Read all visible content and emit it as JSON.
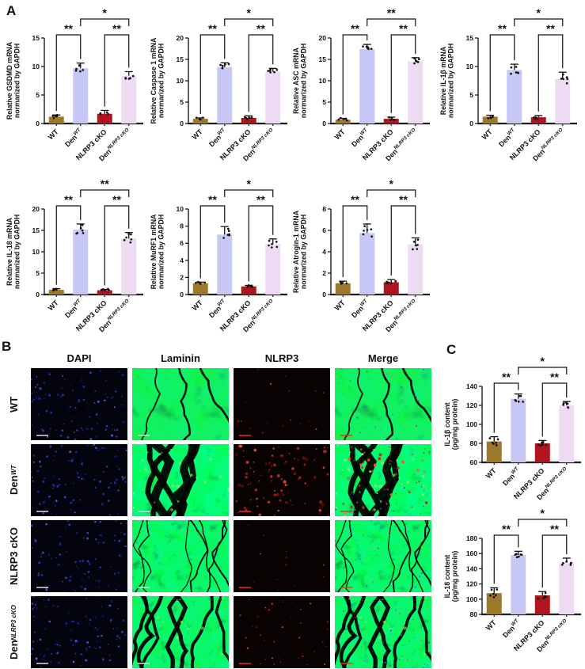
{
  "figure": {
    "panels": {
      "a": {
        "label": "A"
      },
      "b": {
        "label": "B",
        "col_headers": [
          "DAPI",
          "Laminin",
          "NLRP3",
          "Merge"
        ],
        "row_labels": [
          {
            "base": "WT",
            "sup": ""
          },
          {
            "base": "Den",
            "sup": "WT"
          },
          {
            "base": "NLRP3 cKO",
            "sup": ""
          },
          {
            "base": "Den",
            "sup": "NLRP3 cKO"
          }
        ]
      },
      "c": {
        "label": "C"
      }
    },
    "categories": [
      {
        "base": "WT",
        "sup": ""
      },
      {
        "base": "Den",
        "sup": "WT"
      },
      {
        "base": "NLRP3 cKO",
        "sup": ""
      },
      {
        "base": "Den",
        "sup": "NLRP3 cKO"
      }
    ],
    "colors": {
      "bar_wt": "#9d7a2b",
      "bar_den_wt": "#c7c8f3",
      "bar_nlrp3_cko": "#b0141f",
      "bar_den_nlrp3_cko": "#eedaf3",
      "axis": "#1c1c1c",
      "dapi_blue": "#3b4cf0",
      "nlrp3_red": "#e02315",
      "laminin_green": "#35d435"
    }
  },
  "chart_data": [
    {
      "id": "gsdmd",
      "panel": "A",
      "type": "bar",
      "ylabel": [
        "Relative GSDMD mRNA",
        "normarized by GAPDH"
      ],
      "ymin": 0,
      "ymax": 15,
      "yticks": [
        0,
        5,
        10,
        15
      ],
      "values": [
        1.2,
        9.7,
        1.7,
        8.4
      ],
      "err": [
        0.3,
        0.9,
        0.6,
        0.7
      ],
      "sig_pairs": [
        "**",
        "**"
      ],
      "sig_top": "*"
    },
    {
      "id": "caspase1",
      "panel": "A",
      "type": "bar",
      "ylabel": [
        "Relative Caspase 1 mRNA",
        "normarized by GAPDH"
      ],
      "ymin": 0,
      "ymax": 20,
      "yticks": [
        0,
        5,
        10,
        15,
        20
      ],
      "values": [
        1.1,
        13.2,
        1.3,
        12.1
      ],
      "err": [
        0.2,
        1.0,
        0.5,
        0.8
      ],
      "sig_pairs": [
        "**",
        "**"
      ],
      "sig_top": "*"
    },
    {
      "id": "asc",
      "panel": "A",
      "type": "bar",
      "ylabel": [
        "Relative ASC mRNA",
        "normarized by GAPDH"
      ],
      "ymin": 0,
      "ymax": 20,
      "yticks": [
        0,
        5,
        10,
        15,
        20
      ],
      "values": [
        0.9,
        17.4,
        1.1,
        14.5
      ],
      "err": [
        0.3,
        1.1,
        0.4,
        0.9
      ],
      "sig_pairs": [
        "**",
        "**"
      ],
      "sig_top": "**"
    },
    {
      "id": "il1b_mrna",
      "panel": "A",
      "type": "bar",
      "ylabel": [
        "Relative IL-1β mRNA",
        "normarized by GAPDH"
      ],
      "ymin": 0,
      "ymax": 15,
      "yticks": [
        0,
        5,
        10,
        15
      ],
      "values": [
        1.2,
        9.4,
        1.1,
        7.8
      ],
      "err": [
        0.25,
        1.0,
        0.3,
        1.2
      ],
      "sig_pairs": [
        "**",
        "**"
      ],
      "sig_top": "*"
    },
    {
      "id": "il18_mrna",
      "panel": "A",
      "type": "bar",
      "ylabel": [
        "Relative IL-18 mRNA",
        "normarized by GAPDH"
      ],
      "ymin": 0,
      "ymax": 20,
      "yticks": [
        0,
        5,
        10,
        15,
        20
      ],
      "values": [
        1.1,
        15.2,
        1.0,
        13.1
      ],
      "err": [
        0.25,
        1.3,
        0.2,
        1.4
      ],
      "sig_pairs": [
        "**",
        "**"
      ],
      "sig_top": "**"
    },
    {
      "id": "murf1",
      "panel": "A",
      "type": "bar",
      "ylabel": [
        "Relative MuRF1 mRNA",
        "normarized by GAPDH"
      ],
      "ymin": 0,
      "ymax": 10,
      "yticks": [
        0,
        2,
        4,
        6,
        8,
        10
      ],
      "values": [
        1.3,
        7.0,
        0.95,
        5.9
      ],
      "err": [
        0.15,
        0.95,
        0.12,
        0.6
      ],
      "sig_pairs": [
        "**",
        "**"
      ],
      "sig_top": "*"
    },
    {
      "id": "atrogin1",
      "panel": "A",
      "type": "bar",
      "ylabel": [
        "Relative Atrogin-1 mRNA",
        "normarized by GAPDH"
      ],
      "ymin": 0,
      "ymax": 8,
      "yticks": [
        0,
        2,
        4,
        6,
        8
      ],
      "values": [
        1.05,
        5.75,
        1.15,
        4.7
      ],
      "err": [
        0.2,
        0.85,
        0.25,
        0.6
      ],
      "sig_pairs": [
        "**",
        "**"
      ],
      "sig_top": "*"
    },
    {
      "id": "il1b_content",
      "panel": "C",
      "type": "bar",
      "ylabel": [
        "IL-1β content",
        "(pg/mg protein)"
      ],
      "ymin": 60,
      "ymax": 140,
      "yticks": [
        60,
        80,
        100,
        120,
        140
      ],
      "values": [
        82,
        127,
        80,
        120
      ],
      "err": [
        5,
        5,
        3,
        4
      ],
      "sig_pairs": [
        "**",
        "**"
      ],
      "sig_top": "*"
    },
    {
      "id": "il18_content",
      "panel": "C",
      "type": "bar",
      "ylabel": [
        "IL-18 content",
        "(pg/mg protein)"
      ],
      "ymin": 80,
      "ymax": 180,
      "yticks": [
        80,
        100,
        120,
        140,
        160,
        180
      ],
      "values": [
        108,
        158,
        105,
        148
      ],
      "err": [
        7,
        5,
        5,
        6
      ],
      "sig_pairs": [
        "**",
        "**"
      ],
      "sig_top": "*"
    }
  ]
}
